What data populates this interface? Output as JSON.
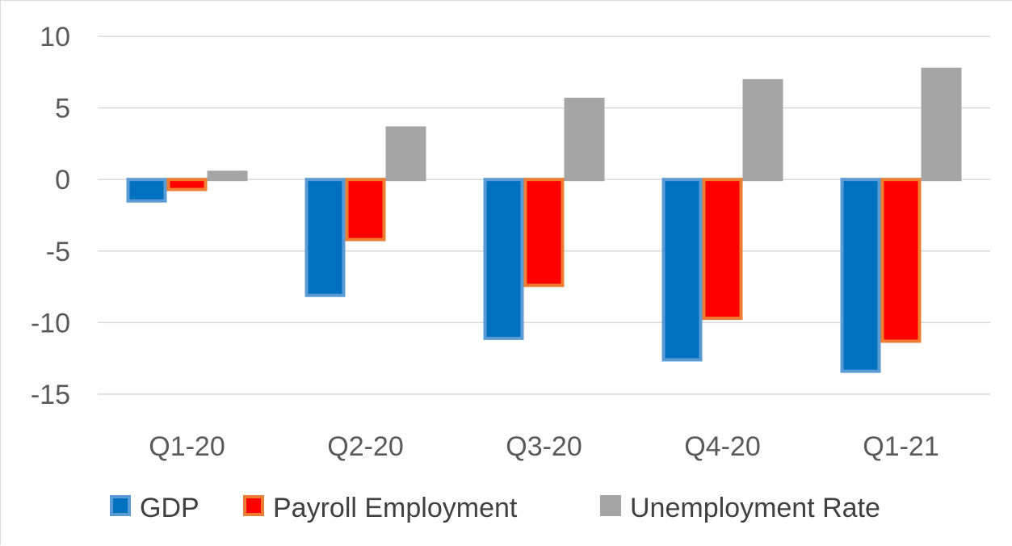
{
  "chart_data": {
    "type": "bar",
    "title": "",
    "xlabel": "",
    "ylabel": "",
    "categories": [
      "Q1-20",
      "Q2-20",
      "Q3-20",
      "Q4-20",
      "Q1-21"
    ],
    "series": [
      {
        "name": "GDP",
        "values": [
          -1.5,
          -8.1,
          -11.1,
          -12.6,
          -13.4
        ],
        "fill": "#0070c0",
        "stroke": "#5b9bd5"
      },
      {
        "name": "Payroll Employment",
        "values": [
          -0.7,
          -4.2,
          -7.4,
          -9.7,
          -11.3
        ],
        "fill": "#ff0000",
        "stroke": "#ed7d31"
      },
      {
        "name": "Unemployment Rate",
        "values": [
          0.5,
          3.6,
          5.6,
          6.9,
          7.7
        ],
        "fill": "#a5a5a5",
        "stroke": "#a5a5a5"
      }
    ],
    "ylim": [
      -15,
      10
    ],
    "yticks": [
      "10",
      "5",
      "0",
      "-5",
      "-10",
      "-15"
    ],
    "ytick_values": [
      10,
      5,
      0,
      -5,
      -10,
      -15
    ],
    "grid": true,
    "legend_position": "bottom"
  }
}
